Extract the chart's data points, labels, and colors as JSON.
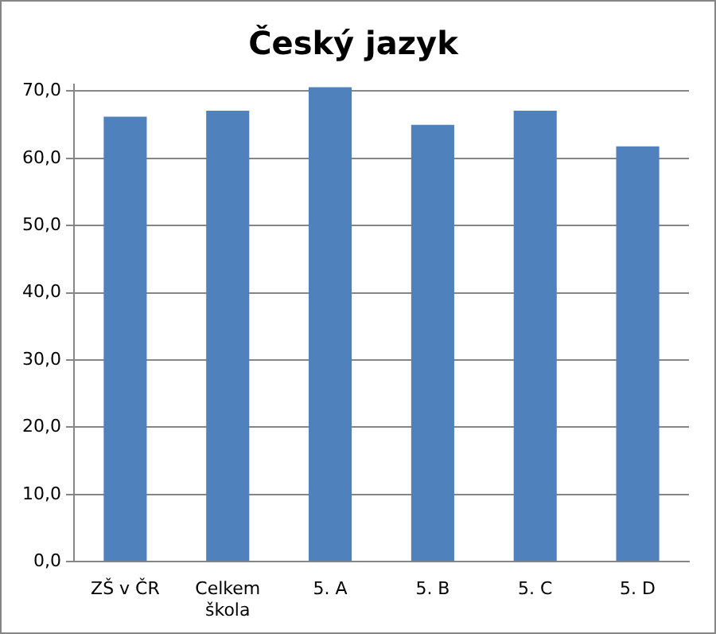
{
  "chart_data": {
    "type": "bar",
    "title": "Český jazyk",
    "categories": [
      "ZŠ v ČR",
      "Celkem škola",
      "5. A",
      "5. B",
      "5. C",
      "5. D"
    ],
    "values": [
      66.2,
      67.1,
      70.6,
      65.0,
      67.1,
      61.8
    ],
    "color": "#4f81bd",
    "ylim": [
      0,
      71
    ],
    "yticks": [
      {
        "value": 0,
        "label": "0,0"
      },
      {
        "value": 10,
        "label": "10,0"
      },
      {
        "value": 20,
        "label": "20,0"
      },
      {
        "value": 30,
        "label": "30,0"
      },
      {
        "value": 40,
        "label": "40,0"
      },
      {
        "value": 50,
        "label": "50,0"
      },
      {
        "value": 60,
        "label": "60,0"
      },
      {
        "value": 70,
        "label": "70,0"
      }
    ],
    "grid": "y"
  }
}
